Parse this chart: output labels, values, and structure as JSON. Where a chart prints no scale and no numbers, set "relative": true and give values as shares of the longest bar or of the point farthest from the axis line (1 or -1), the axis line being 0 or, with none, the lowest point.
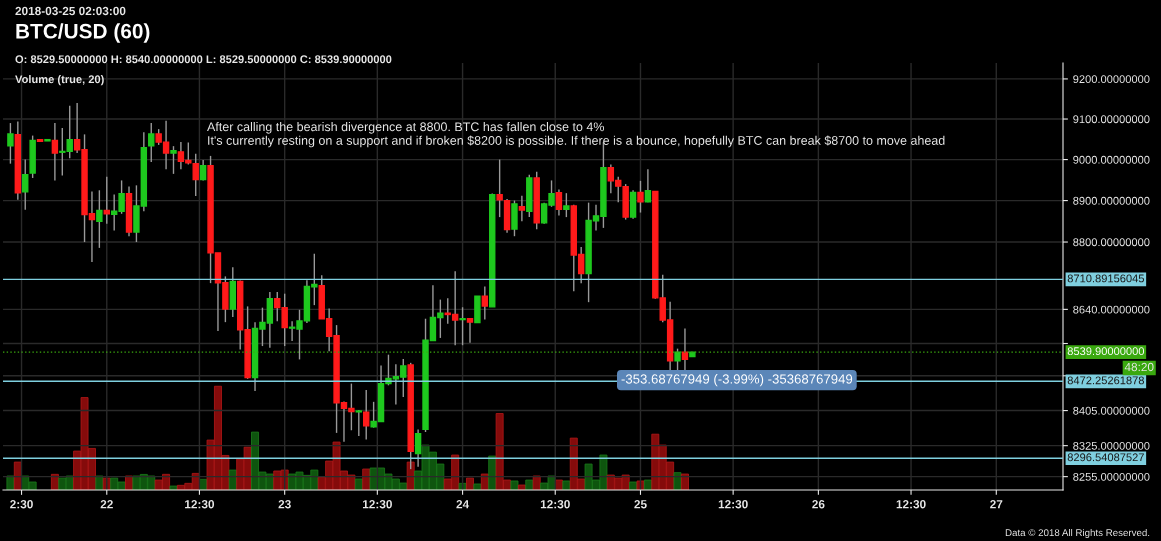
{
  "chart_data": [
    {
      "type": "candlestick",
      "title": "BTC/USD (60)",
      "annotations": [
        "2018-03-25 02:03:00",
        "O: 8529.50000000 H: 8540.00000000 L: 8529.50000000 C: 8539.90000000",
        "Volume (true, 20)",
        "After calling the bearish divergence at 8800. BTC has fallen close to 4%\nIt's currently resting on a support and if broken $8200 is possible. If there is a bounce, hopefully BTC can break $8700 to move ahead",
        "48:20",
        "Data © 2018 All Rights Reserved.",
        {
          "text": "-353.68767949 (-3.99%) -35368767949",
          "x": "2018-03-25T13:00",
          "y": 8475
        }
      ],
      "x": [
        "2018-03-21T11:00",
        "2018-03-21T12:00",
        "2018-03-21T13:00",
        "2018-03-21T14:00",
        "2018-03-21T15:00",
        "2018-03-21T16:00",
        "2018-03-21T17:00",
        "2018-03-21T18:00",
        "2018-03-21T19:00",
        "2018-03-21T20:00",
        "2018-03-21T21:00",
        "2018-03-21T22:00",
        "2018-03-21T23:00",
        "2018-03-22T00:00",
        "2018-03-22T01:00",
        "2018-03-22T02:00",
        "2018-03-22T03:00",
        "2018-03-22T04:00",
        "2018-03-22T05:00",
        "2018-03-22T06:00",
        "2018-03-22T07:00",
        "2018-03-22T08:00",
        "2018-03-22T09:00",
        "2018-03-22T10:00",
        "2018-03-22T11:00",
        "2018-03-22T12:00",
        "2018-03-22T13:00",
        "2018-03-22T14:00",
        "2018-03-22T15:00",
        "2018-03-22T16:00",
        "2018-03-22T17:00",
        "2018-03-22T18:00",
        "2018-03-22T19:00",
        "2018-03-22T20:00",
        "2018-03-22T21:00",
        "2018-03-22T22:00",
        "2018-03-22T23:00",
        "2018-03-23T00:00",
        "2018-03-23T01:00",
        "2018-03-23T02:00",
        "2018-03-23T03:00",
        "2018-03-23T04:00",
        "2018-03-23T05:00",
        "2018-03-23T06:00",
        "2018-03-23T07:00",
        "2018-03-23T08:00",
        "2018-03-23T09:00",
        "2018-03-23T10:00",
        "2018-03-23T11:00",
        "2018-03-23T12:00",
        "2018-03-23T13:00",
        "2018-03-23T14:00",
        "2018-03-23T15:00",
        "2018-03-23T16:00",
        "2018-03-23T17:00",
        "2018-03-23T18:00",
        "2018-03-23T19:00",
        "2018-03-23T20:00",
        "2018-03-23T21:00",
        "2018-03-23T22:00",
        "2018-03-23T23:00",
        "2018-03-24T00:00",
        "2018-03-24T01:00",
        "2018-03-24T02:00",
        "2018-03-24T03:00",
        "2018-03-24T04:00",
        "2018-03-24T05:00",
        "2018-03-24T06:00",
        "2018-03-24T07:00",
        "2018-03-24T08:00",
        "2018-03-24T09:00",
        "2018-03-24T10:00",
        "2018-03-24T11:00",
        "2018-03-24T12:00",
        "2018-03-24T13:00",
        "2018-03-24T14:00",
        "2018-03-24T15:00",
        "2018-03-24T16:00",
        "2018-03-24T17:00",
        "2018-03-24T18:00",
        "2018-03-24T19:00",
        "2018-03-24T20:00",
        "2018-03-24T21:00",
        "2018-03-24T22:00",
        "2018-03-24T23:00",
        "2018-03-25T00:00",
        "2018-03-25T01:00",
        "2018-03-25T02:00",
        "2018-03-25T03:00",
        "2018-03-25T04:00",
        "2018-03-25T05:00",
        "2018-03-25T06:00",
        "2018-03-25T07:00"
      ],
      "ohlc": [
        [
          9034,
          9090,
          8990,
          9063
        ],
        [
          9061,
          9094,
          8902,
          8919
        ],
        [
          8921,
          9000,
          8878,
          8963
        ],
        [
          8967,
          9059,
          8955,
          9047
        ],
        [
          9049,
          9049,
          9045,
          9045
        ],
        [
          9046,
          9049,
          9046,
          9049
        ],
        [
          9047,
          9090,
          8949,
          9016
        ],
        [
          9018,
          9078,
          8961,
          9020
        ],
        [
          9020,
          9133,
          9003,
          9049
        ],
        [
          9049,
          9140,
          9016,
          9024
        ],
        [
          9024,
          9062,
          8800,
          8866
        ],
        [
          8868,
          8922,
          8752,
          8854
        ],
        [
          8850,
          8925,
          8786,
          8876
        ],
        [
          8876,
          8958,
          8844,
          8868
        ],
        [
          8867,
          8915,
          8828,
          8874
        ],
        [
          8874,
          8949,
          8868,
          8917
        ],
        [
          8917,
          8934,
          8814,
          8824
        ],
        [
          8824,
          8937,
          8800,
          8887
        ],
        [
          8887,
          9067,
          8874,
          9029
        ],
        [
          9034,
          9090,
          8994,
          9063
        ],
        [
          9063,
          9075,
          9036,
          9043
        ],
        [
          9043,
          9096,
          8976,
          9016
        ],
        [
          9016,
          9033,
          8965,
          9022
        ],
        [
          9019,
          9043,
          8976,
          8996
        ],
        [
          8998,
          9042,
          8988,
          8992
        ],
        [
          8990,
          9014,
          8911,
          8951
        ],
        [
          8951,
          8999,
          8949,
          8985
        ],
        [
          8985,
          9009,
          8702,
          8774
        ],
        [
          8774,
          8774,
          8589,
          8703
        ],
        [
          8703,
          8718,
          8610,
          8641
        ],
        [
          8641,
          8740,
          8622,
          8706
        ],
        [
          8706,
          8708,
          8546,
          8592
        ],
        [
          8592,
          8647,
          8478,
          8481
        ],
        [
          8481,
          8610,
          8450,
          8595
        ],
        [
          8594,
          8644,
          8554,
          8609
        ],
        [
          8608,
          8681,
          8550,
          8665
        ],
        [
          8665,
          8681,
          8612,
          8644
        ],
        [
          8644,
          8677,
          8554,
          8597
        ],
        [
          8596,
          8612,
          8566,
          8598
        ],
        [
          8594,
          8639,
          8523,
          8613
        ],
        [
          8613,
          8709,
          8608,
          8694
        ],
        [
          8693,
          8772,
          8650,
          8699
        ],
        [
          8696,
          8721,
          8618,
          8618
        ],
        [
          8618,
          8642,
          8542,
          8577
        ],
        [
          8578,
          8603,
          8354,
          8423
        ],
        [
          8423,
          8426,
          8334,
          8410
        ],
        [
          8410,
          8467,
          8360,
          8403
        ],
        [
          8402,
          8406,
          8347,
          8404
        ],
        [
          8401,
          8452,
          8339,
          8370
        ],
        [
          8368,
          8425,
          8366,
          8380
        ],
        [
          8380,
          8509,
          8379,
          8467
        ],
        [
          8467,
          8534,
          8463,
          8479
        ],
        [
          8478,
          8512,
          8419,
          8483
        ],
        [
          8482,
          8524,
          8436,
          8508
        ],
        [
          8510,
          8515,
          8272,
          8312
        ],
        [
          8307,
          8362,
          8277,
          8352
        ],
        [
          8362,
          8618,
          8356,
          8568
        ],
        [
          8567,
          8697,
          8566,
          8621
        ],
        [
          8621,
          8663,
          8573,
          8631
        ],
        [
          8631,
          8666,
          8606,
          8628
        ],
        [
          8628,
          8730,
          8556,
          8615
        ],
        [
          8616,
          8645,
          8556,
          8618
        ],
        [
          8618,
          8618,
          8562,
          8610
        ],
        [
          8609,
          8671,
          8608,
          8671
        ],
        [
          8671,
          8694,
          8616,
          8648
        ],
        [
          8646,
          8917,
          8646,
          8914
        ],
        [
          8914,
          9000,
          8860,
          8902
        ],
        [
          8900,
          8904,
          8822,
          8830
        ],
        [
          8831,
          8900,
          8814,
          8892
        ],
        [
          8885,
          8912,
          8850,
          8877
        ],
        [
          8874,
          8963,
          8860,
          8955
        ],
        [
          8955,
          8970,
          8831,
          8846
        ],
        [
          8846,
          8895,
          8844,
          8892
        ],
        [
          8889,
          8949,
          8885,
          8917
        ],
        [
          8919,
          8927,
          8864,
          8879
        ],
        [
          8879,
          8918,
          8860,
          8887
        ],
        [
          8887,
          8890,
          8683,
          8769
        ],
        [
          8770,
          8788,
          8702,
          8725
        ],
        [
          8725,
          8895,
          8657,
          8852
        ],
        [
          8851,
          8890,
          8828,
          8863
        ],
        [
          8862,
          9043,
          8834,
          8980
        ],
        [
          8980,
          8988,
          8918,
          8948
        ],
        [
          8949,
          8958,
          8896,
          8935
        ],
        [
          8934,
          8940,
          8854,
          8860
        ],
        [
          8860,
          8925,
          8856,
          8920
        ],
        [
          8920,
          8948,
          8871,
          8897
        ],
        [
          8897,
          8976,
          8896,
          8924
        ],
        [
          8922,
          8922,
          8665,
          8667
        ],
        [
          8667,
          8722,
          8610,
          8615
        ],
        [
          8615,
          8658,
          8498,
          8520
        ],
        [
          8520,
          8548,
          8498,
          8540
        ],
        [
          8540,
          8595,
          8498,
          8523
        ],
        [
          8529.5,
          8540,
          8529.5,
          8539.9
        ]
      ],
      "colors": [
        "#1ec81e",
        "#ff1a1a",
        "#1ec81e",
        "#1ec81e",
        "#ff1a1a",
        "#1ec81e",
        "#ff1a1a",
        "#1ec81e",
        "#1ec81e",
        "#ff1a1a",
        "#ff1a1a",
        "#ff1a1a",
        "#1ec81e",
        "#ff1a1a",
        "#1ec81e",
        "#1ec81e",
        "#ff1a1a",
        "#1ec81e",
        "#1ec81e",
        "#1ec81e",
        "#ff1a1a",
        "#ff1a1a",
        "#1ec81e",
        "#ff1a1a",
        "#ff1a1a",
        "#ff1a1a",
        "#1ec81e",
        "#ff1a1a",
        "#ff1a1a",
        "#ff1a1a",
        "#1ec81e",
        "#ff1a1a",
        "#ff1a1a",
        "#1ec81e",
        "#1ec81e",
        "#1ec81e",
        "#ff1a1a",
        "#ff1a1a",
        "#1ec81e",
        "#1ec81e",
        "#1ec81e",
        "#1ec81e",
        "#ff1a1a",
        "#ff1a1a",
        "#ff1a1a",
        "#ff1a1a",
        "#ff1a1a",
        "#1ec81e",
        "#ff1a1a",
        "#1ec81e",
        "#1ec81e",
        "#1ec81e",
        "#1ec81e",
        "#1ec81e",
        "#ff1a1a",
        "#1ec81e",
        "#1ec81e",
        "#1ec81e",
        "#1ec81e",
        "#ff1a1a",
        "#ff1a1a",
        "#1ec81e",
        "#ff1a1a",
        "#1ec81e",
        "#ff1a1a",
        "#1ec81e",
        "#ff1a1a",
        "#ff1a1a",
        "#1ec81e",
        "#ff1a1a",
        "#1ec81e",
        "#ff1a1a",
        "#1ec81e",
        "#1ec81e",
        "#ff1a1a",
        "#1ec81e",
        "#ff1a1a",
        "#ff1a1a",
        "#1ec81e",
        "#1ec81e",
        "#1ec81e",
        "#ff1a1a",
        "#ff1a1a",
        "#ff1a1a",
        "#1ec81e",
        "#ff1a1a",
        "#1ec81e",
        "#ff1a1a",
        "#ff1a1a",
        "#ff1a1a",
        "#1ec81e",
        "#ff1a1a",
        "#1ec81e"
      ],
      "log": true,
      "xlim": [
        "2018-03-21T10:00",
        "2018-03-27T09:00"
      ],
      "xticks": [
        {
          "value": "2018-03-21T12:30",
          "label": "2:30"
        },
        {
          "value": "2018-03-22",
          "label": "22"
        },
        {
          "value": "2018-03-22T12:30",
          "label": "12:30"
        },
        {
          "value": "2018-03-23",
          "label": "23"
        },
        {
          "value": "2018-03-23T12:30",
          "label": "12:30"
        },
        {
          "value": "2018-03-24",
          "label": "24"
        },
        {
          "value": "2018-03-24T12:30",
          "label": "12:30"
        },
        {
          "value": "2018-03-25",
          "label": "25"
        },
        {
          "value": "2018-03-25T12:30",
          "label": "12:30"
        },
        {
          "value": "2018-03-26",
          "label": "26"
        },
        {
          "value": "2018-03-26T12:30",
          "label": "12:30"
        },
        {
          "value": "2018-03-27",
          "label": "27"
        }
      ],
      "ylim": [
        8225,
        9240
      ],
      "yticks": [
        {
          "value": 9200,
          "label": "9200.00000000"
        },
        {
          "value": 9100,
          "label": "9100.00000000"
        },
        {
          "value": 9000,
          "label": "9000.00000000"
        },
        {
          "value": 8900,
          "label": "8900.00000000"
        },
        {
          "value": 8800,
          "label": "8800.00000000"
        },
        {
          "value": 8640,
          "label": "8640.00000000"
        },
        {
          "value": 8560,
          "label": null
        },
        {
          "value": 8485,
          "label": null
        },
        {
          "value": 8405,
          "label": "8405.00000000"
        },
        {
          "value": 8325,
          "label": "8325.00000000"
        },
        {
          "value": 8255,
          "label": "8255.00000000"
        }
      ],
      "grid": true,
      "ref_lines": [
        {
          "axis": "y",
          "value": 8710.89156045,
          "label": "8710.89156045",
          "color": "#7fcfdf",
          "line_style": "solid"
        },
        {
          "axis": "y",
          "value": 8539.9,
          "label": "8539.90000000",
          "color": "#3aa80f",
          "line_style": "dotted"
        },
        {
          "axis": "y",
          "value": 8472.25261878,
          "label": "8472.25261878",
          "color": "#7fcfdf",
          "line_style": "solid"
        },
        {
          "axis": "y",
          "value": 8296.54087527,
          "label": "8296.54087527",
          "color": "#7fcfdf",
          "line_style": "solid"
        }
      ]
    },
    {
      "type": "bar",
      "relative": true,
      "tick_labels": false,
      "xlim": [
        "2018-03-21T10:00",
        "2018-03-27T09:00"
      ],
      "x": [
        "2018-03-21T11:00",
        "2018-03-21T12:00",
        "2018-03-21T13:00",
        "2018-03-21T14:00",
        "2018-03-21T15:00",
        "2018-03-21T16:00",
        "2018-03-21T17:00",
        "2018-03-21T18:00",
        "2018-03-21T19:00",
        "2018-03-21T20:00",
        "2018-03-21T21:00",
        "2018-03-21T22:00",
        "2018-03-21T23:00",
        "2018-03-22T00:00",
        "2018-03-22T01:00",
        "2018-03-22T02:00",
        "2018-03-22T03:00",
        "2018-03-22T04:00",
        "2018-03-22T05:00",
        "2018-03-22T06:00",
        "2018-03-22T07:00",
        "2018-03-22T08:00",
        "2018-03-22T09:00",
        "2018-03-22T10:00",
        "2018-03-22T11:00",
        "2018-03-22T12:00",
        "2018-03-22T13:00",
        "2018-03-22T14:00",
        "2018-03-22T15:00",
        "2018-03-22T16:00",
        "2018-03-22T17:00",
        "2018-03-22T18:00",
        "2018-03-22T19:00",
        "2018-03-22T20:00",
        "2018-03-22T21:00",
        "2018-03-22T22:00",
        "2018-03-22T23:00",
        "2018-03-23T00:00",
        "2018-03-23T01:00",
        "2018-03-23T02:00",
        "2018-03-23T03:00",
        "2018-03-23T04:00",
        "2018-03-23T05:00",
        "2018-03-23T06:00",
        "2018-03-23T07:00",
        "2018-03-23T08:00",
        "2018-03-23T09:00",
        "2018-03-23T10:00",
        "2018-03-23T11:00",
        "2018-03-23T12:00",
        "2018-03-23T13:00",
        "2018-03-23T14:00",
        "2018-03-23T15:00",
        "2018-03-23T16:00",
        "2018-03-23T17:00",
        "2018-03-23T18:00",
        "2018-03-23T19:00",
        "2018-03-23T20:00",
        "2018-03-23T21:00",
        "2018-03-23T22:00",
        "2018-03-23T23:00",
        "2018-03-24T00:00",
        "2018-03-24T01:00",
        "2018-03-24T02:00",
        "2018-03-24T03:00",
        "2018-03-24T04:00",
        "2018-03-24T05:00",
        "2018-03-24T06:00",
        "2018-03-24T07:00",
        "2018-03-24T08:00",
        "2018-03-24T09:00",
        "2018-03-24T10:00",
        "2018-03-24T11:00",
        "2018-03-24T12:00",
        "2018-03-24T13:00",
        "2018-03-24T14:00",
        "2018-03-24T15:00",
        "2018-03-24T16:00",
        "2018-03-24T17:00",
        "2018-03-24T18:00",
        "2018-03-24T19:00",
        "2018-03-24T20:00",
        "2018-03-24T21:00",
        "2018-03-24T22:00",
        "2018-03-24T23:00",
        "2018-03-25T00:00",
        "2018-03-25T01:00",
        "2018-03-25T02:00",
        "2018-03-25T03:00",
        "2018-03-25T04:00",
        "2018-03-25T05:00",
        "2018-03-25T06:00"
      ],
      "values": [
        0.135,
        0.269,
        0.135,
        0.077,
        null,
        null,
        0.151,
        0.115,
        0.135,
        0.375,
        0.891,
        0.401,
        0.135,
        0.115,
        0.115,
        0.077,
        0.135,
        0.135,
        0.15,
        0.135,
        0.096,
        0.151,
        0.038,
        0.045,
        0.064,
        0.16,
        0.103,
        0.481,
        1.0,
        0.333,
        0.192,
        0.298,
        0.413,
        0.558,
        0.173,
        0.154,
        0.183,
        0.192,
        0.154,
        0.173,
        0.141,
        0.192,
        0.125,
        0.279,
        0.462,
        0.183,
        0.144,
        0.106,
        0.202,
        0.212,
        0.212,
        0.154,
        0.106,
        0.067,
        0.269,
        0.183,
        0.433,
        0.365,
        0.25,
        0.106,
        0.337,
        0.064,
        0.115,
        0.058,
        0.154,
        0.327,
        0.737,
        0.096,
        0.087,
        0.048,
        0.096,
        0.135,
        0.067,
        0.135,
        0.096,
        0.087,
        0.5,
        0.106,
        0.25,
        0.096,
        0.337,
        0.144,
        0.115,
        0.144,
        0.077,
        0.087,
        0.096,
        0.538,
        0.433,
        0.269,
        0.167,
        0.154
      ],
      "colors": [
        "#0e550e",
        "#850b0b",
        "#0e550e",
        "#0e550e",
        "#850b0b",
        "#0e550e",
        "#850b0b",
        "#0e550e",
        "#0e550e",
        "#850b0b",
        "#850b0b",
        "#850b0b",
        "#0e550e",
        "#850b0b",
        "#0e550e",
        "#0e550e",
        "#850b0b",
        "#0e550e",
        "#0e550e",
        "#0e550e",
        "#850b0b",
        "#850b0b",
        "#0e550e",
        "#850b0b",
        "#850b0b",
        "#850b0b",
        "#0e550e",
        "#850b0b",
        "#850b0b",
        "#850b0b",
        "#0e550e",
        "#850b0b",
        "#850b0b",
        "#0e550e",
        "#0e550e",
        "#0e550e",
        "#850b0b",
        "#850b0b",
        "#0e550e",
        "#0e550e",
        "#0e550e",
        "#0e550e",
        "#850b0b",
        "#850b0b",
        "#850b0b",
        "#850b0b",
        "#850b0b",
        "#0e550e",
        "#850b0b",
        "#0e550e",
        "#0e550e",
        "#0e550e",
        "#0e550e",
        "#0e550e",
        "#850b0b",
        "#0e550e",
        "#0e550e",
        "#0e550e",
        "#0e550e",
        "#850b0b",
        "#850b0b",
        "#0e550e",
        "#850b0b",
        "#0e550e",
        "#850b0b",
        "#0e550e",
        "#850b0b",
        "#850b0b",
        "#0e550e",
        "#850b0b",
        "#0e550e",
        "#850b0b",
        "#0e550e",
        "#0e550e",
        "#850b0b",
        "#0e550e",
        "#850b0b",
        "#850b0b",
        "#0e550e",
        "#0e550e",
        "#0e550e",
        "#850b0b",
        "#850b0b",
        "#850b0b",
        "#0e550e",
        "#850b0b",
        "#0e550e",
        "#850b0b",
        "#850b0b",
        "#850b0b",
        "#0e550e",
        "#850b0b"
      ]
    }
  ]
}
